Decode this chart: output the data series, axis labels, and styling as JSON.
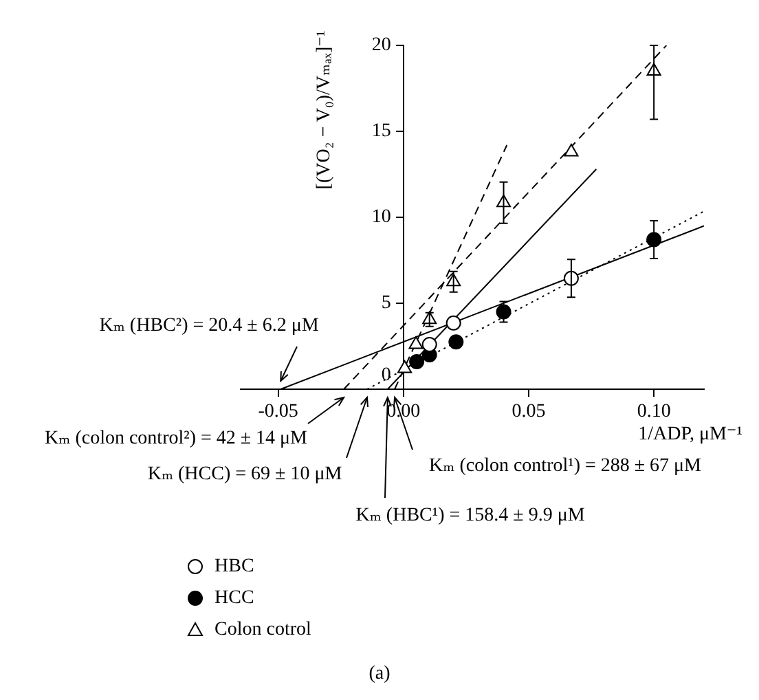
{
  "chart_data": {
    "type": "scatter",
    "xlabel": "1/ADP, μM⁻¹",
    "ylabel": "[(VO₂ − V₀)/Vₘₐₓ]⁻¹",
    "xlim": [
      -0.065,
      0.12
    ],
    "xticks": [
      -0.05,
      {
        "value": 0,
        "label": "0.00"
      },
      0.05,
      {
        "value": 0.1,
        "label": "0.10"
      }
    ],
    "ylim": [
      0,
      20
    ],
    "yticks": [
      0,
      5,
      10,
      15,
      20
    ],
    "grid": false,
    "legend": "bottom left",
    "series": [
      {
        "name": "HBC",
        "marker": "circle",
        "color": "#ffffff",
        "x": [
          0.0104,
          0.02,
          0.067
        ],
        "values": [
          2.6,
          3.85,
          6.45
        ],
        "errors": [
          null,
          null,
          1.1
        ]
      },
      {
        "name": "HCC",
        "marker": "circle",
        "color": "#000000",
        "x": [
          0.0053,
          0.0104,
          0.021,
          0.04,
          0.1
        ],
        "values": [
          1.6,
          2.0,
          2.75,
          4.5,
          8.7
        ],
        "errors": [
          null,
          null,
          null,
          0.6,
          1.1
        ]
      },
      {
        "name": "Colon cotrol",
        "marker": "triangle",
        "color": "#ffffff",
        "x": [
          0.0005,
          0.005,
          0.0104,
          0.02,
          0.04,
          0.067,
          0.1
        ],
        "values": [
          1.2,
          2.6,
          4.05,
          6.25,
          10.85,
          13.8,
          18.5
        ],
        "errors": [
          null,
          null,
          0.4,
          0.6,
          1.2,
          null,
          [
            15.7,
            20
          ]
        ]
      },
      {
        "type": "line",
        "marker": "none",
        "line_style": "solid",
        "color": "#000000",
        "x": [
          -0.049,
          0.12
        ],
        "values": [
          0,
          9.5
        ]
      },
      {
        "type": "line",
        "marker": "none",
        "line_style": "solid",
        "color": "#000000",
        "x": [
          -0.0063,
          0.077
        ],
        "values": [
          0,
          12.8
        ]
      },
      {
        "type": "line",
        "marker": "none",
        "line_style": "dashed",
        "color": "#000000",
        "x": [
          -0.0238,
          0.105
        ],
        "values": [
          0,
          20
        ]
      },
      {
        "type": "line",
        "marker": "none",
        "line_style": "dashed",
        "color": "#000000",
        "x": [
          -0.0035,
          0.0413
        ],
        "values": [
          0,
          14.2
        ]
      },
      {
        "type": "line",
        "marker": "none",
        "line_style": "dotted",
        "color": "#000000",
        "x": [
          -0.0145,
          0.12
        ],
        "values": [
          0,
          10.35
        ]
      }
    ],
    "annotations": [
      {
        "text": "Kₘ (HBC²) = 20.4 ± 6.2 μM",
        "x": -0.049,
        "y": 0
      },
      {
        "text": "Kₘ (colon control²) = 42 ± 14 μM",
        "x": -0.0238,
        "y": 0
      },
      {
        "text": "Kₘ (HCC) = 69 ± 10 μM",
        "x": -0.0145,
        "y": 0
      },
      {
        "text": "Kₘ (HBC¹) = 158.4 ± 9.9 μM",
        "x": -0.0063,
        "y": 0
      },
      {
        "text": "Kₘ (colon control¹) = 288 ± 67 μM",
        "x": -0.0035,
        "y": 0
      },
      "(a)"
    ]
  }
}
